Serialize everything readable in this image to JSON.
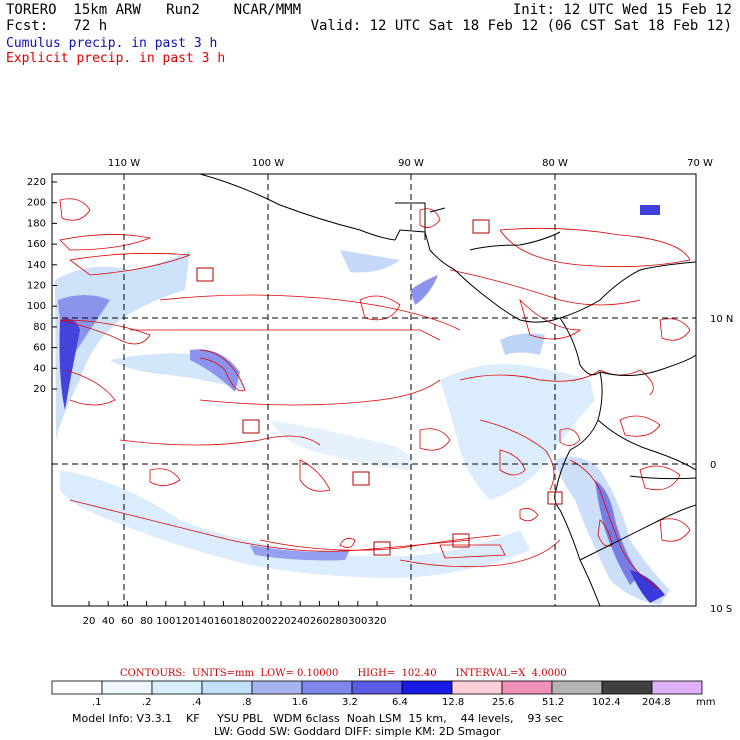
{
  "header": {
    "model": "TORERO  15km ARW   Run2    NCAR/MMM",
    "fcst": "Fcst:   72 h",
    "init": "Init: 12 UTC Wed 15 Feb 12",
    "valid": "Valid: 12 UTC Sat 18 Feb 12 (06 CST Sat 18 Feb 12)"
  },
  "legend": {
    "cumulus": "Cumulus precip. in past 3 h",
    "explicit": "Explicit precip. in past 3 h",
    "cumulus_color": "#1010b0",
    "explicit_color": "#e00000"
  },
  "map": {
    "top_lon_labels": [
      "110 W",
      "100 W",
      "90 W",
      "80 W",
      "70 W"
    ],
    "right_lat_labels": [
      "10 N",
      "0",
      "10 S"
    ],
    "left_y_ticks": [
      "220",
      "200",
      "180",
      "160",
      "140",
      "120",
      "100",
      "80",
      "60",
      "40",
      "20"
    ],
    "bottom_x_ticks": [
      "20",
      "40",
      "60",
      "80",
      "100",
      "120",
      "140",
      "160",
      "180",
      "200",
      "220",
      "240",
      "260",
      "280",
      "300",
      "320"
    ],
    "box_labels": [
      "1",
      "1",
      "1",
      "1",
      "1",
      "1",
      "1"
    ]
  },
  "contours": {
    "text": "CONTOURS:  UNITS=mm  LOW= 0.10000      HIGH=  102.40      INTERVAL=X  4.0000"
  },
  "colorbar": {
    "levels": [
      ".1",
      ".2",
      ".4",
      ".8",
      "1.6",
      "3.2",
      "6.4",
      "12.8",
      "25.6",
      "51.2",
      "102.4",
      "204.8"
    ],
    "unit": "mm",
    "colors": [
      "#ffffff",
      "#eef7ff",
      "#d8eefc",
      "#bfe0f7",
      "#a8b4f0",
      "#7f88ea",
      "#5a5ae6",
      "#1a1ae6",
      "#ffd0d8",
      "#f090b8",
      "#b4b4b4",
      "#404040",
      "#e0b0f8"
    ]
  },
  "model_info": {
    "line1": "Model Info: V3.3.1    KF     YSU PBL   WDM 6class  Noah LSM  15 km,    44 levels,    93 sec",
    "line2": "LW: Godd SW: Goddard DIFF: simple KM: 2D Smagor"
  }
}
